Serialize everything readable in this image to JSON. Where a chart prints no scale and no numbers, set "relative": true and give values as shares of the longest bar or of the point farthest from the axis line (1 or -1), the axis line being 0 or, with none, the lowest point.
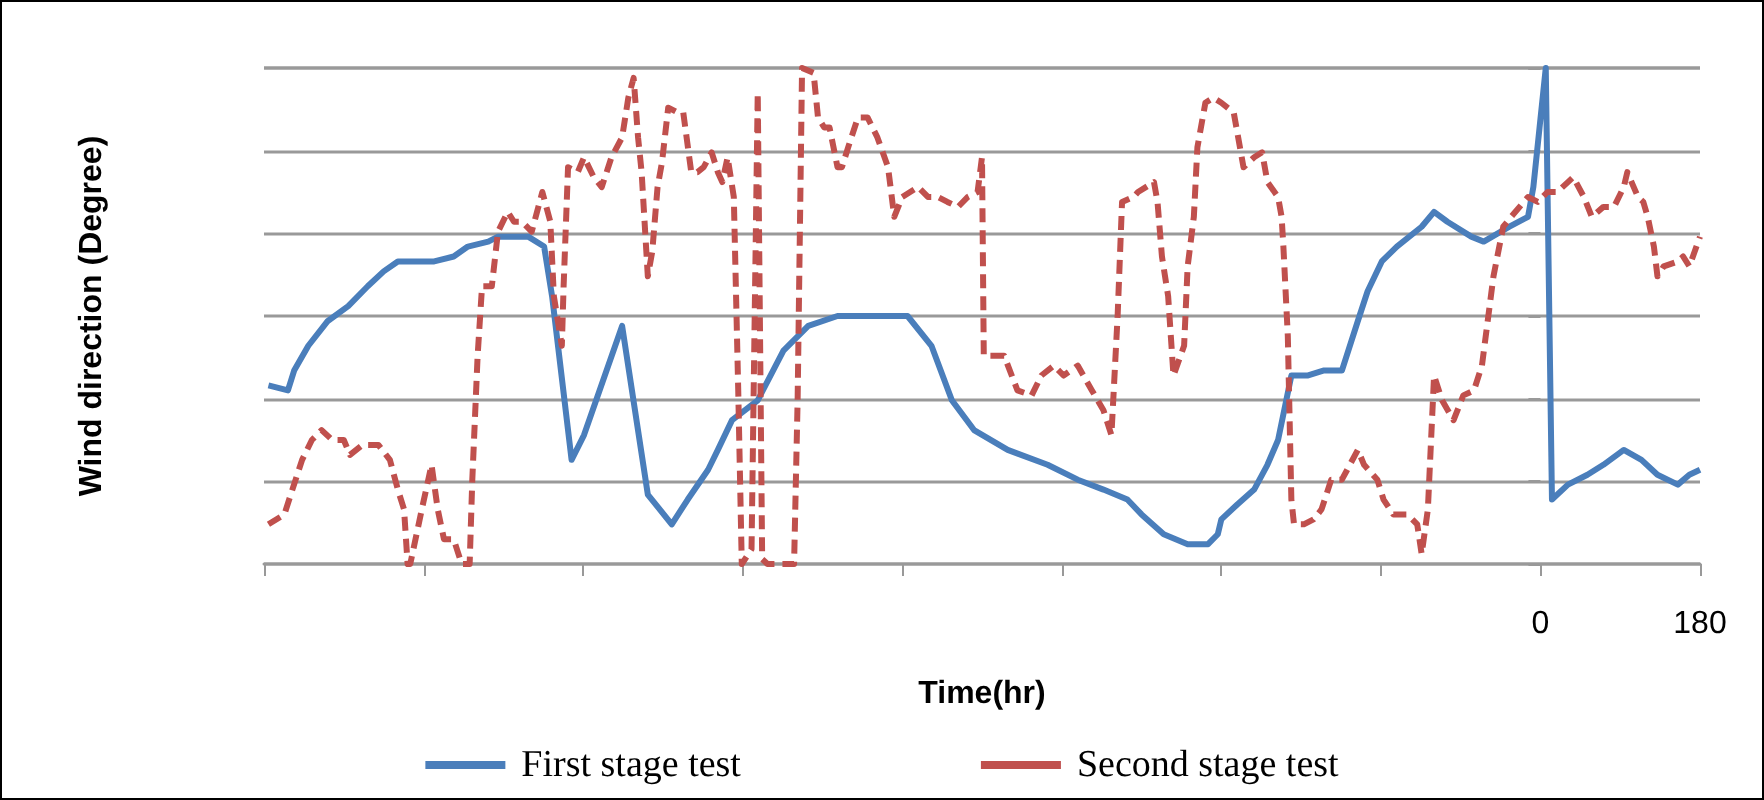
{
  "chart_data": {
    "type": "line",
    "xlabel": "Time(hr)",
    "ylabel": "Wind direction (Degree)",
    "relative": true,
    "xlim": [
      -1440,
      180
    ],
    "xticks": [
      {
        "value": -1440,
        "label": null
      },
      {
        "value": -1260,
        "label": null
      },
      {
        "value": -1080,
        "label": null
      },
      {
        "value": -900,
        "label": null
      },
      {
        "value": -720,
        "label": null
      },
      {
        "value": -540,
        "label": null
      },
      {
        "value": -360,
        "label": null
      },
      {
        "value": -180,
        "label": null
      },
      0,
      180
    ],
    "grid": "y",
    "legend": "bottom",
    "marker": "none",
    "series": [
      {
        "name": "First stage test",
        "color": "#4a7ebb",
        "line_style": "solid",
        "x": [
          -1435,
          -1413,
          -1406,
          -1390,
          -1368,
          -1345,
          -1323,
          -1305,
          -1289,
          -1248,
          -1226,
          -1210,
          -1187,
          -1176,
          -1142,
          -1124,
          -1115,
          -1093,
          -1079,
          -1036,
          -1007,
          -980,
          -962,
          -939,
          -928,
          -912,
          -883,
          -854,
          -826,
          -793,
          -763,
          -714,
          -687,
          -664,
          -639,
          -601,
          -556,
          -522,
          -493,
          -466,
          -450,
          -425,
          -398,
          -375,
          -364,
          -360,
          -342,
          -323,
          -308,
          -296,
          -281,
          -263,
          -245,
          -224,
          -206,
          -195,
          -179,
          -162,
          -134,
          -120,
          -105,
          -78,
          -64,
          -35,
          -14,
          -8,
          -1,
          6,
          13,
          31,
          53,
          71,
          94,
          114,
          132,
          155,
          168,
          180
        ],
        "values": [
          0.36,
          0.35,
          0.39,
          0.44,
          0.49,
          0.52,
          0.56,
          0.59,
          0.61,
          0.61,
          0.62,
          0.64,
          0.65,
          0.66,
          0.66,
          0.64,
          0.54,
          0.21,
          0.26,
          0.48,
          0.14,
          0.08,
          0.13,
          0.19,
          0.23,
          0.29,
          0.33,
          0.43,
          0.48,
          0.5,
          0.5,
          0.5,
          0.44,
          0.33,
          0.27,
          0.23,
          0.2,
          0.17,
          0.15,
          0.13,
          0.1,
          0.06,
          0.04,
          0.04,
          0.06,
          0.09,
          0.12,
          0.15,
          0.2,
          0.25,
          0.38,
          0.38,
          0.39,
          0.39,
          0.49,
          0.55,
          0.61,
          0.64,
          0.68,
          0.71,
          0.69,
          0.66,
          0.65,
          0.68,
          0.7,
          0.76,
          0.88,
          1,
          0.13,
          0.16,
          0.18,
          0.2,
          0.23,
          0.21,
          0.18,
          0.16,
          0.18,
          0.19
        ]
      },
      {
        "name": "Second stage test",
        "color": "#c0504d",
        "line_style": "dashed",
        "x": [
          -1435,
          -1417,
          -1408,
          -1397,
          -1386,
          -1375,
          -1363,
          -1350,
          -1343,
          -1329,
          -1311,
          -1298,
          -1289,
          -1282,
          -1278,
          -1275,
          -1262,
          -1251,
          -1244,
          -1237,
          -1226,
          -1217,
          -1208,
          -1205,
          -1199,
          -1194,
          -1183,
          -1176,
          -1165,
          -1158,
          -1149,
          -1138,
          -1126,
          -1117,
          -1113,
          -1104,
          -1102,
          -1097,
          -1086,
          -1079,
          -1068,
          -1059,
          -1048,
          -1036,
          -1029,
          -1023,
          -1018,
          -1014,
          -1007,
          -1002,
          -996,
          -991,
          -984,
          -973,
          -967,
          -958,
          -951,
          -944,
          -935,
          -928,
          -923,
          -917,
          -910,
          -905,
          -901,
          -890,
          -883,
          -878,
          -872,
          -842,
          -838,
          -833,
          -820,
          -815,
          -808,
          -802,
          -793,
          -788,
          -781,
          -770,
          -759,
          -748,
          -736,
          -729,
          -720,
          -702,
          -691,
          -680,
          -669,
          -657,
          -646,
          -635,
          -630,
          -628,
          -605,
          -590,
          -574,
          -563,
          -549,
          -538,
          -522,
          -506,
          -493,
          -484,
          -477,
          -472,
          -459,
          -454,
          -436,
          -432,
          -427,
          -420,
          -414,
          -402,
          -398,
          -391,
          -387,
          -378,
          -369,
          -360,
          -346,
          -342,
          -335,
          -323,
          -314,
          -308,
          -296,
          -292,
          -290,
          -285,
          -281,
          -278,
          -267,
          -256,
          -247,
          -236,
          -224,
          -218,
          -206,
          -199,
          -184,
          -177,
          -166,
          -150,
          -139,
          -134,
          -127,
          -120,
          -111,
          -98,
          -87,
          -75,
          -66,
          -53,
          -42,
          -33,
          -14,
          -3,
          8,
          19,
          31,
          37,
          49,
          58,
          71,
          83,
          94,
          98,
          110,
          116,
          121,
          128,
          132,
          139,
          155,
          161,
          168,
          180
        ],
        "values": [
          0.08,
          0.1,
          0.15,
          0.21,
          0.25,
          0.27,
          0.25,
          0.25,
          0.22,
          0.24,
          0.24,
          0.21,
          0.15,
          0.11,
          0,
          0,
          0.11,
          0.2,
          0.11,
          0.05,
          0.05,
          0,
          0,
          0.17,
          0.42,
          0.56,
          0.56,
          0.67,
          0.71,
          0.69,
          0.69,
          0.67,
          0.75,
          0.69,
          0.54,
          0.44,
          0.56,
          0.8,
          0.79,
          0.82,
          0.78,
          0.76,
          0.82,
          0.86,
          0.94,
          0.98,
          0.86,
          0.79,
          0.58,
          0.63,
          0.76,
          0.81,
          0.92,
          0.91,
          0.91,
          0.79,
          0.79,
          0.8,
          0.83,
          0.79,
          0.77,
          0.82,
          0.74,
          0.35,
          0,
          0.03,
          0.95,
          0.01,
          0,
          0,
          0.33,
          1,
          0.99,
          0.9,
          0.88,
          0.88,
          0.8,
          0.8,
          0.84,
          0.9,
          0.9,
          0.86,
          0.8,
          0.7,
          0.74,
          0.76,
          0.74,
          0.74,
          0.73,
          0.72,
          0.74,
          0.75,
          0.82,
          0.42,
          0.42,
          0.35,
          0.34,
          0.38,
          0.4,
          0.38,
          0.4,
          0.35,
          0.31,
          0.26,
          0.5,
          0.73,
          0.74,
          0.75,
          0.77,
          0.73,
          0.62,
          0.54,
          0.38,
          0.44,
          0.6,
          0.7,
          0.84,
          0.93,
          0.94,
          0.93,
          0.91,
          0.87,
          0.8,
          0.82,
          0.83,
          0.77,
          0.74,
          0.7,
          0.64,
          0.46,
          0.13,
          0.08,
          0.08,
          0.09,
          0.11,
          0.17,
          0.17,
          0.19,
          0.23,
          0.2,
          0.17,
          0.13,
          0.1,
          0.1,
          0.08,
          0.02,
          0.11,
          0.38,
          0.33,
          0.29,
          0.34,
          0.35,
          0.4,
          0.58,
          0.68,
          0.7,
          0.74,
          0.73,
          0.75,
          0.75,
          0.77,
          0.78,
          0.74,
          0.7,
          0.72,
          0.72,
          0.76,
          0.79,
          0.74,
          0.73,
          0.7,
          0.64,
          0.58,
          0.6,
          0.61,
          0.62,
          0.6,
          0.66
        ]
      }
    ]
  }
}
